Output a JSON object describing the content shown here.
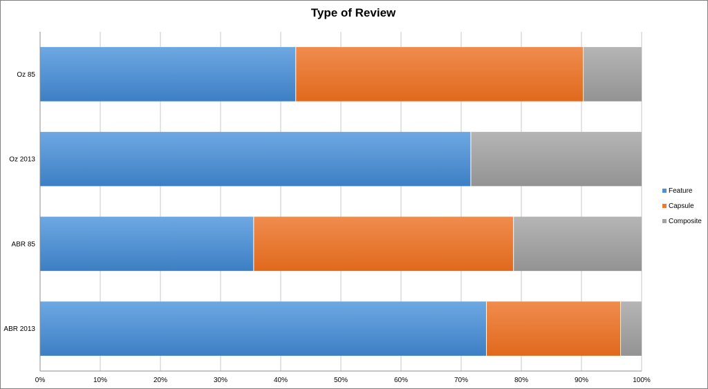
{
  "chart_data": {
    "type": "bar",
    "orientation": "horizontal",
    "stacked": "percent",
    "title": "Type of Review",
    "categories": [
      "Oz 85",
      "Oz 2013",
      "ABR 85",
      "ABR 2013"
    ],
    "series": [
      {
        "name": "Feature",
        "values": [
          42.5,
          71.6,
          35.5,
          74.2
        ],
        "color": "#4f8fd6"
      },
      {
        "name": "Capsule",
        "values": [
          47.8,
          0,
          43.2,
          22.3
        ],
        "color": "#ec7a30"
      },
      {
        "name": "Composite",
        "values": [
          9.7,
          28.4,
          21.3,
          3.5
        ],
        "color": "#a3a3a3"
      }
    ],
    "xlim": [
      0,
      100
    ],
    "x_ticks": [
      "0%",
      "10%",
      "20%",
      "30%",
      "40%",
      "50%",
      "60%",
      "70%",
      "80%",
      "90%",
      "100%"
    ],
    "grid": true,
    "legend_position": "right"
  }
}
